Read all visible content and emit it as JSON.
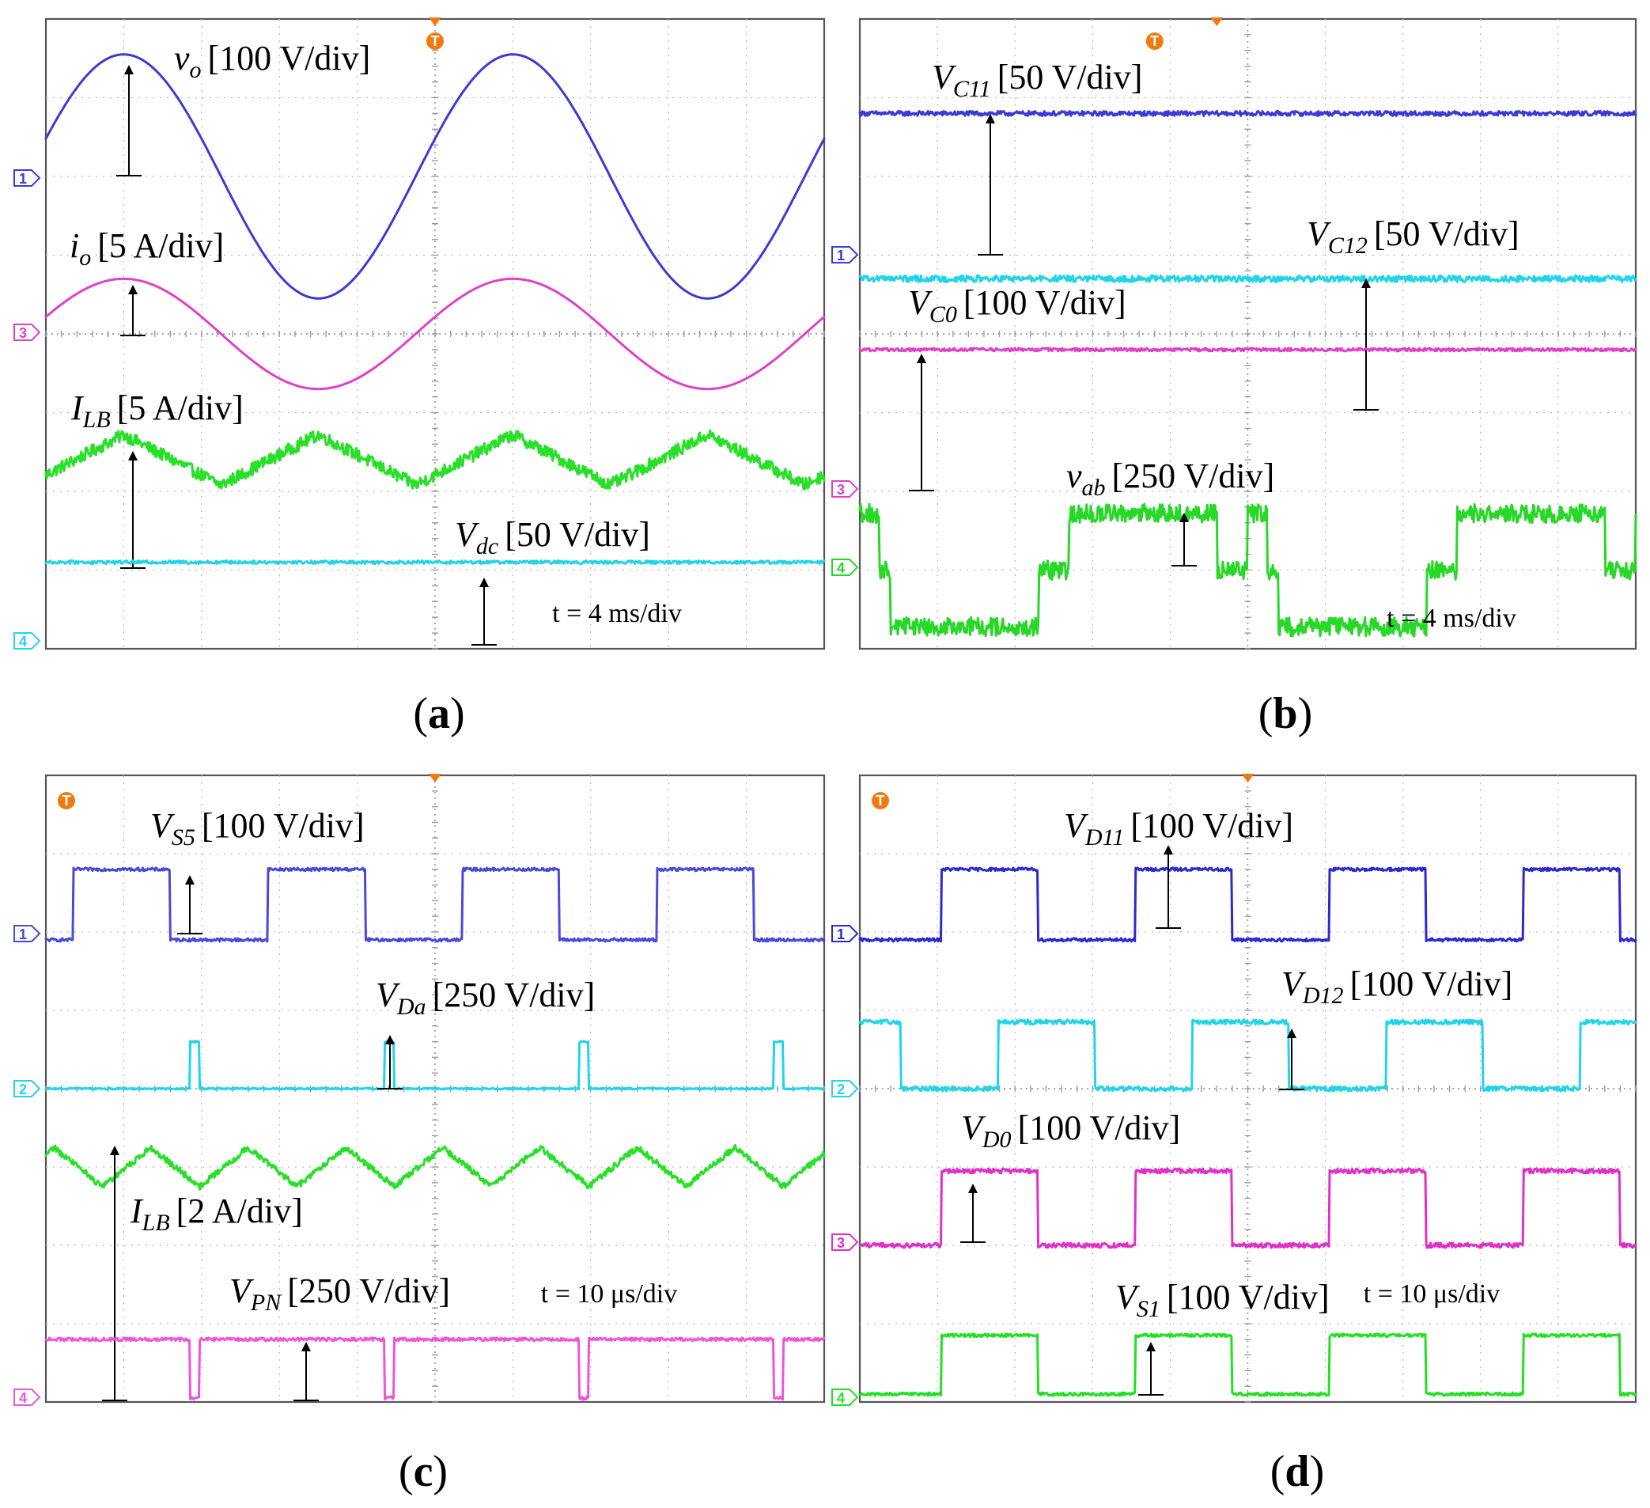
{
  "figure": {
    "panels_caption": [
      "(a)",
      "(b)",
      "(c)",
      "(d)"
    ]
  },
  "chart_data": [
    {
      "id": "a",
      "type": "line",
      "title": "(a)",
      "caption_letter": "a",
      "xlabel": "t",
      "timebase": "t =  4 ms/div",
      "xlim_div": [
        0,
        10
      ],
      "ylim_div": [
        0,
        8
      ],
      "grid": true,
      "trigger_marker": "T",
      "series": [
        {
          "name": "v_o",
          "label_main": "v",
          "label_sub": "o",
          "label_italic": true,
          "scale": "[100 V/div]",
          "channel": "1",
          "color": "#3a3ad6",
          "waveform": "sine",
          "offset_div": 6.0,
          "amplitude_div": 1.55,
          "period_div": 5.0,
          "phase_div": 1.0,
          "noise_div": 0.0
        },
        {
          "name": "i_o",
          "label_main": "i",
          "label_sub": "o",
          "label_italic": true,
          "scale": "[5 A/div]",
          "channel": "3",
          "color": "#e040c8",
          "waveform": "sine",
          "offset_div": 4.0,
          "amplitude_div": 0.7,
          "period_div": 5.0,
          "phase_div": 1.0,
          "noise_div": 0.0
        },
        {
          "name": "I_LB",
          "label_main": "I",
          "label_sub": "LB",
          "label_italic": true,
          "scale": "[5 A/div]",
          "channel": "",
          "color": "#28e028",
          "waveform": "triangle",
          "offset_div": 2.4,
          "amplitude_div": 0.32,
          "period_div": 2.5,
          "phase_div": 1.0,
          "noise_div": 0.08
        },
        {
          "name": "V_dc",
          "label_main": "V",
          "label_sub": "dc",
          "label_italic": true,
          "scale": "[50 V/div]",
          "channel": "4",
          "color": "#22d4e8",
          "waveform": "dc",
          "offset_div": 1.1,
          "amplitude_div": 0.0,
          "period_div": 1.0,
          "phase_div": 0.0,
          "noise_div": 0.02
        }
      ]
    },
    {
      "id": "b",
      "type": "line",
      "title": "(b)",
      "caption_letter": "b",
      "xlabel": "t",
      "timebase": "t =  4 ms/div",
      "xlim_div": [
        0,
        10
      ],
      "ylim_div": [
        0,
        8
      ],
      "grid": true,
      "trigger_marker": "T",
      "series": [
        {
          "name": "V_C11",
          "label_main": "V",
          "label_sub": "C11",
          "label_italic": true,
          "scale": "[50 V/div]",
          "channel": "1",
          "color": "#3a3ad6",
          "waveform": "dc",
          "offset_div": 6.8,
          "amplitude_div": 0.0,
          "period_div": 1.0,
          "phase_div": 0.0,
          "noise_div": 0.03
        },
        {
          "name": "V_C12",
          "label_main": "V",
          "label_sub": "C12",
          "label_italic": true,
          "scale": "[50 V/div]",
          "channel": "",
          "color": "#22d4e8",
          "waveform": "dc",
          "offset_div": 4.7,
          "amplitude_div": 0.0,
          "period_div": 1.0,
          "phase_div": 0.0,
          "noise_div": 0.04
        },
        {
          "name": "V_C0",
          "label_main": "V",
          "label_sub": "C0",
          "label_italic": true,
          "scale": "[100 V/div]",
          "channel": "3",
          "color": "#e040c8",
          "waveform": "dc",
          "offset_div": 3.8,
          "amplitude_div": 0.0,
          "period_div": 1.0,
          "phase_div": 0.0,
          "noise_div": 0.02
        },
        {
          "name": "v_ab",
          "label_main": "v",
          "label_sub": "ab",
          "label_italic": true,
          "scale": "[250 V/div]",
          "channel": "4",
          "color": "#28d828",
          "waveform": "threelevel",
          "offset_div": 1.0,
          "amplitude_div": 0.72,
          "period_div": 5.0,
          "phase_div": 0.0,
          "noise_div": 0.12
        }
      ]
    },
    {
      "id": "c",
      "type": "line",
      "title": "(c)",
      "caption_letter": "c",
      "xlabel": "t",
      "timebase": "t =  10 μs/div",
      "xlim_div": [
        0,
        10
      ],
      "ylim_div": [
        0,
        8
      ],
      "grid": true,
      "trigger_marker": "T",
      "series": [
        {
          "name": "V_S5",
          "label_main": "V",
          "label_sub": "S5",
          "label_italic": true,
          "scale": "[100 V/div]",
          "channel": "1",
          "color": "#4a4ad8",
          "waveform": "pulse",
          "offset_div": 5.9,
          "amplitude_div": 0.9,
          "period_div": 2.5,
          "phase_div": 0.35,
          "noise_div": 0.02
        },
        {
          "name": "V_Da",
          "label_main": "V",
          "label_sub": "Da",
          "label_italic": true,
          "scale": "[250 V/div]",
          "channel": "2",
          "color": "#22d4e8",
          "waveform": "spike",
          "offset_div": 4.0,
          "amplitude_div": 0.6,
          "period_div": 2.5,
          "phase_div": 1.85,
          "noise_div": 0.01
        },
        {
          "name": "I_LB",
          "label_main": "I",
          "label_sub": "LB",
          "label_italic": true,
          "scale": "[2 A/div]",
          "channel": "",
          "color": "#28e028",
          "waveform": "triangle",
          "offset_div": 3.0,
          "amplitude_div": 0.25,
          "period_div": 1.25,
          "phase_div": 0.1,
          "noise_div": 0.04
        },
        {
          "name": "V_PN",
          "label_main": "V",
          "label_sub": "PN",
          "label_italic": true,
          "scale": "[250 V/div]",
          "channel": "4",
          "color": "#ee55d8",
          "waveform": "notch",
          "offset_div": 0.8,
          "amplitude_div": 0.75,
          "period_div": 2.5,
          "phase_div": 1.85,
          "noise_div": 0.02
        }
      ]
    },
    {
      "id": "d",
      "type": "line",
      "title": "(d)",
      "caption_letter": "d",
      "xlabel": "t",
      "timebase": "t = 10 μs/div",
      "xlim_div": [
        0,
        10
      ],
      "ylim_div": [
        0,
        8
      ],
      "grid": true,
      "trigger_marker": "T",
      "series": [
        {
          "name": "V_D11",
          "label_main": "V",
          "label_sub": "D11",
          "label_italic": true,
          "scale": "[100 V/div]",
          "channel": "1",
          "color": "#2a2ad0",
          "waveform": "pulse",
          "offset_div": 5.9,
          "amplitude_div": 0.9,
          "period_div": 2.5,
          "phase_div": 1.05,
          "noise_div": 0.02
        },
        {
          "name": "V_D12",
          "label_main": "V",
          "label_sub": "D12",
          "label_italic": true,
          "scale": "[100 V/div]",
          "channel": "2",
          "color": "#22d4e8",
          "waveform": "pulse",
          "offset_div": 4.0,
          "amplitude_div": 0.85,
          "period_div": 2.5,
          "phase_div": 1.78,
          "noise_div": 0.03
        },
        {
          "name": "V_D0",
          "label_main": "V",
          "label_sub": "D0",
          "label_italic": true,
          "scale": "[100 V/div]",
          "channel": "3",
          "color": "#e030c8",
          "waveform": "pulse",
          "offset_div": 2.0,
          "amplitude_div": 0.95,
          "period_div": 2.5,
          "phase_div": 1.05,
          "noise_div": 0.03
        },
        {
          "name": "V_S1",
          "label_main": "V",
          "label_sub": "S1",
          "label_italic": true,
          "scale": "[100 V/div]",
          "channel": "4",
          "color": "#22e022",
          "waveform": "pulse",
          "offset_div": 0.1,
          "amplitude_div": 0.75,
          "period_div": 2.5,
          "phase_div": 1.05,
          "noise_div": 0.02
        }
      ]
    }
  ]
}
